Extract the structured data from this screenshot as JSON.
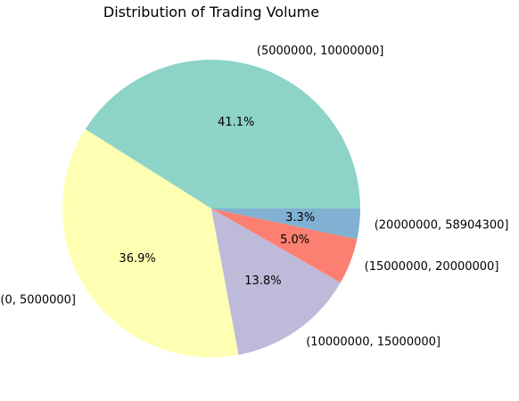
{
  "chart_data": {
    "type": "pie",
    "title": "Distribution of Trading Volume",
    "slices": [
      {
        "label": "(5000000, 10000000]",
        "value": 41.1,
        "pct_label": "41.1%",
        "color": "#8dd3c7"
      },
      {
        "label": "(0, 5000000]",
        "value": 36.9,
        "pct_label": "36.9%",
        "color": "#ffffb3"
      },
      {
        "label": "(10000000, 15000000]",
        "value": 13.8,
        "pct_label": "13.8%",
        "color": "#bebada"
      },
      {
        "label": "(15000000, 20000000]",
        "value": 5.0,
        "pct_label": "5.0%",
        "color": "#fb8072"
      },
      {
        "label": "(20000000, 58904300]",
        "value": 3.3,
        "pct_label": "3.3%",
        "color": "#80b1d3"
      }
    ]
  }
}
